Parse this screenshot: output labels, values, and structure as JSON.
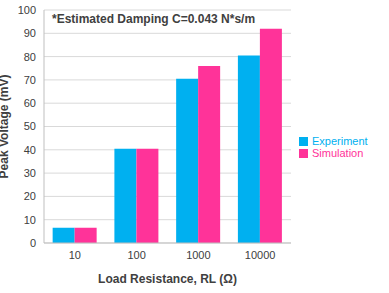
{
  "chart_data": {
    "type": "bar",
    "annotations": [
      "*Estimated Damping C=0.043 N*s/m"
    ],
    "x_label": "Load Resistance, RL (Ω)",
    "y_label": "Peak Voltage (mV)",
    "categories": [
      "10",
      "100",
      "1000",
      "10000"
    ],
    "series": [
      {
        "name": "Experiment",
        "color": "#00b0f0",
        "values": [
          6.5,
          40.5,
          70.5,
          80.5
        ]
      },
      {
        "name": "Simulation",
        "color": "#ff3399",
        "values": [
          6.5,
          40.5,
          76,
          92
        ]
      }
    ],
    "ylim": [
      0,
      100
    ],
    "yticks": [
      0,
      10,
      20,
      30,
      40,
      50,
      60,
      70,
      80,
      90,
      100
    ],
    "grid": true,
    "legend": "right"
  }
}
